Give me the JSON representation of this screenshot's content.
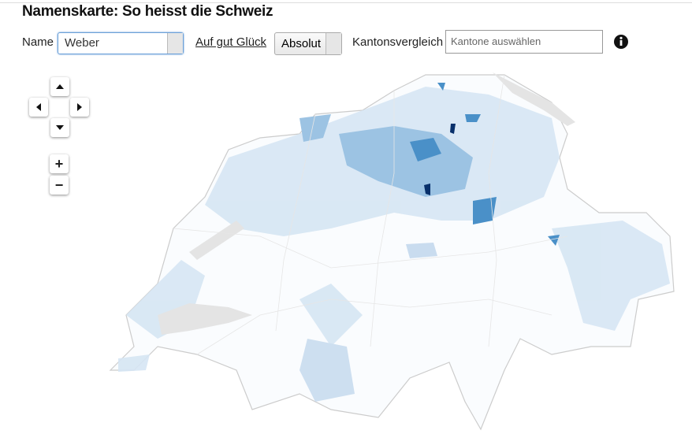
{
  "header": {
    "title": "Namenskarte: So heisst die Schweiz"
  },
  "controls": {
    "name_label": "Name",
    "name_value": "Weber",
    "random_link": "Auf gut Glück",
    "mode": "Absolut",
    "compare_label": "Kantonsvergleich",
    "compare_placeholder": "Kantone auswählen",
    "zoom_in": "+",
    "zoom_out": "−"
  }
}
